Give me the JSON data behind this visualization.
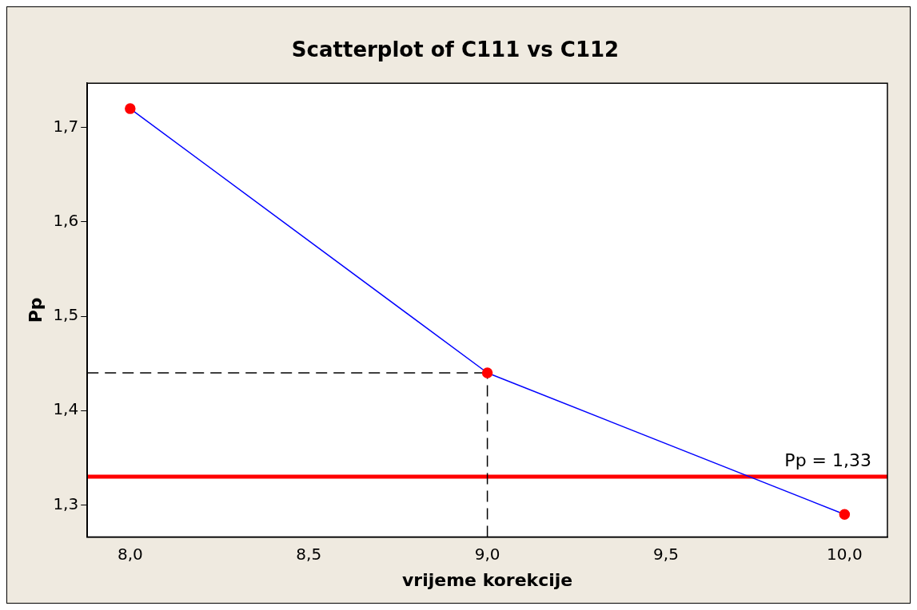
{
  "chart_data": {
    "type": "line",
    "title": "Scatterplot of C111 vs C112",
    "xlabel": "vrijeme korekcije",
    "ylabel": "Pp",
    "x": [
      8,
      9,
      10
    ],
    "series": [
      {
        "color": "#0000ff",
        "colors": [
          "#ff0000",
          "#ff0000",
          "#ff0000"
        ],
        "values": [
          1.72,
          1.44,
          1.29
        ]
      }
    ],
    "marker": "circle",
    "line_style": "solid",
    "grid": false,
    "legend": false,
    "xlim": [
      7.88,
      10.12
    ],
    "xticks": [
      {
        "value": 8,
        "label": "8,0"
      },
      {
        "value": 8.5,
        "label": "8,5"
      },
      {
        "value": 9,
        "label": "9,0"
      },
      {
        "value": 9.5,
        "label": "9,5"
      },
      {
        "value": 10,
        "label": "10,0"
      }
    ],
    "ylim": [
      1.266,
      1.747
    ],
    "yticks": [
      {
        "value": 1.3,
        "label": "1,3"
      },
      {
        "value": 1.4,
        "label": "1,4"
      },
      {
        "value": 1.5,
        "label": "1,5"
      },
      {
        "value": 1.6,
        "label": "1,6"
      },
      {
        "value": 1.7,
        "label": "1,7"
      }
    ],
    "ref_lines": [
      {
        "axis": "y",
        "value": 1.33,
        "label": "Pp = 1,33",
        "color": "#ff0000",
        "line_style": "solid"
      },
      {
        "axis": "y",
        "value": 1.44,
        "color": "#000000",
        "line_style": "dashed"
      },
      {
        "axis": "x",
        "value": 9,
        "color": "#000000",
        "line_style": "dashed"
      }
    ]
  }
}
